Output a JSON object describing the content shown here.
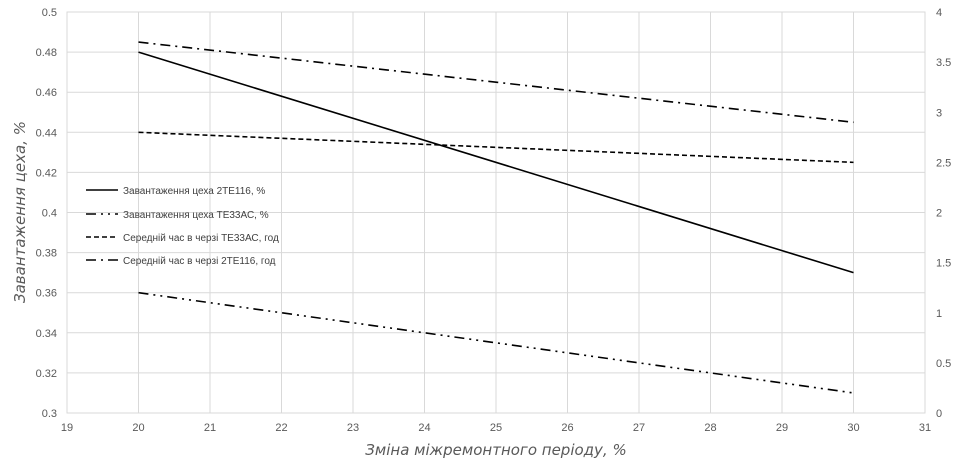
{
  "chart_data": {
    "type": "line",
    "xlabel": "Зміна міжремонтного періоду, %",
    "ylabel": "Завантаження цеха, %",
    "xlim": [
      19,
      31
    ],
    "x_ticks": [
      "19",
      "20",
      "21",
      "22",
      "23",
      "24",
      "25",
      "26",
      "27",
      "28",
      "29",
      "30",
      "31"
    ],
    "ylim_left": [
      0.3,
      0.5
    ],
    "y_left_ticks": [
      "0.3",
      "0.32",
      "0.34",
      "0.36",
      "0.38",
      "0.4",
      "0.42",
      "0.44",
      "0.46",
      "0.48",
      "0.5"
    ],
    "ylim_right": [
      0,
      4
    ],
    "y_right_ticks": [
      "0",
      "0.5",
      "1",
      "1.5",
      "2",
      "2.5",
      "3",
      "3.5",
      "4"
    ],
    "grid": true,
    "legend_position": "left",
    "series": [
      {
        "name": "Завантаження цеха 2ТЕ116, %",
        "axis": "left",
        "dash": "solid",
        "x": [
          20,
          30
        ],
        "y": [
          0.48,
          0.37
        ]
      },
      {
        "name": "Завантаження цеха ТЕ33АС, %",
        "axis": "left",
        "dash": "dashdotdot",
        "x": [
          20,
          30
        ],
        "y": [
          0.36,
          0.31
        ]
      },
      {
        "name": "Середній час в черзі ТЕ33АС, год",
        "axis": "right",
        "dash": "dashed",
        "x": [
          20,
          30
        ],
        "y": [
          2.8,
          2.5
        ]
      },
      {
        "name": "Середній час в черзі 2ТЕ116, год",
        "axis": "right",
        "dash": "dashdot",
        "x": [
          20,
          30
        ],
        "y": [
          3.7,
          2.9
        ]
      }
    ]
  }
}
